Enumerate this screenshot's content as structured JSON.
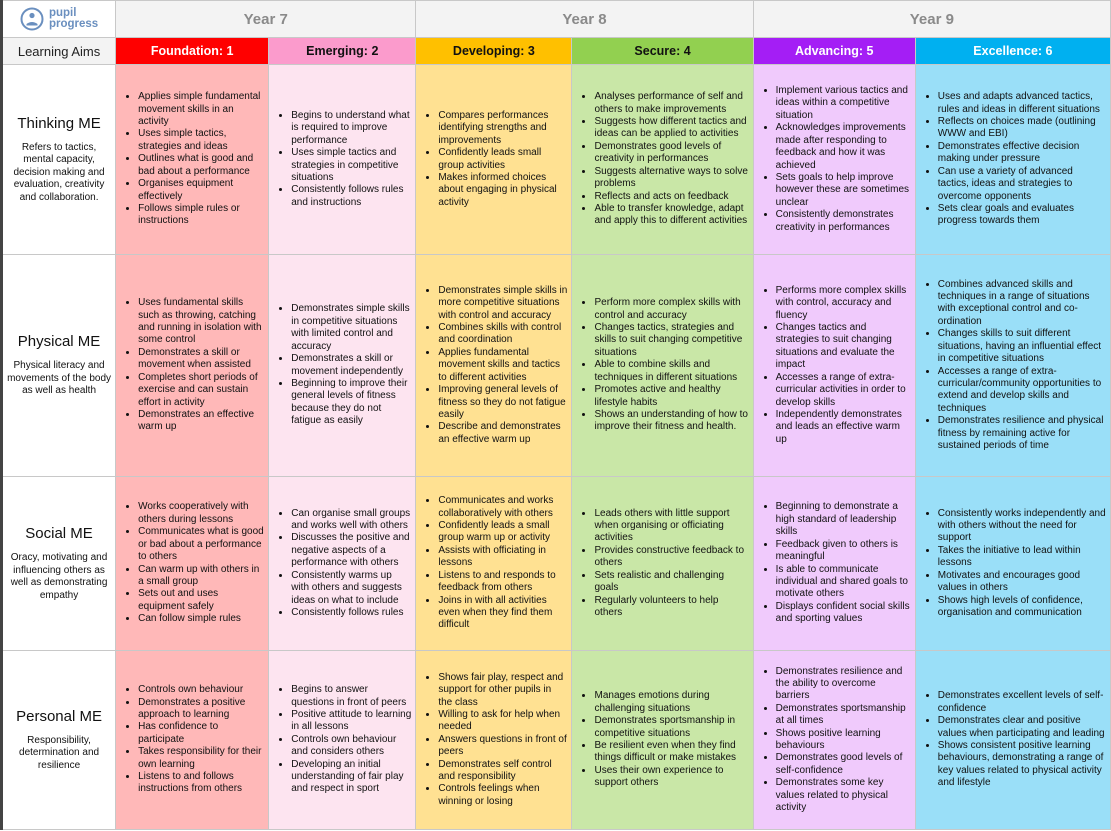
{
  "logo": {
    "line1": "pupil",
    "line2": "progress",
    "color": "#6a8fbf"
  },
  "years": [
    "Year 7",
    "Year 8",
    "Year 9"
  ],
  "learning_aims_label": "Learning Aims",
  "levels": [
    {
      "label": "Foundation: 1",
      "header_color": "#ff0000",
      "text_color": "#ffffff",
      "body_color": "#ffb8b8"
    },
    {
      "label": "Emerging: 2",
      "header_color": "#fb9bcc",
      "text_color": "#111111",
      "body_color": "#fde4f0"
    },
    {
      "label": "Developing: 3",
      "header_color": "#ffc000",
      "text_color": "#111111",
      "body_color": "#ffe192"
    },
    {
      "label": "Secure: 4",
      "header_color": "#92d050",
      "text_color": "#111111",
      "body_color": "#c9e7a7"
    },
    {
      "label": "Advancing: 5",
      "header_color": "#a41ef5",
      "text_color": "#ffffff",
      "body_color": "#f0cafc"
    },
    {
      "label": "Excellence: 6",
      "header_color": "#00b0f0",
      "text_color": "#ffffff",
      "body_color": "#9adff8"
    }
  ],
  "rows": [
    {
      "title": "Thinking ME",
      "description": "Refers to tactics, mental capacity, decision making and evaluation, creativity and collaboration.",
      "cells": [
        [
          "Applies simple fundamental movement skills in an activity",
          "Uses simple tactics, strategies and ideas",
          "Outlines what is good and bad about a performance",
          "Organises equipment effectively",
          "Follows simple rules or instructions"
        ],
        [
          "Begins to understand what is required to improve performance",
          "Uses simple tactics and strategies in competitive situations",
          "Consistently follows rules and instructions"
        ],
        [
          "Compares performances identifying strengths and improvements",
          "Confidently leads small group activities",
          "Makes informed choices about engaging in physical activity"
        ],
        [
          "Analyses performance of self and others to make improvements",
          "Suggests how different tactics and ideas can be applied to activities",
          "Demonstrates good levels of creativity in performances",
          "Suggests alternative ways to solve problems",
          "Reflects and acts on feedback",
          "Able to transfer knowledge, adapt and apply this to different activities"
        ],
        [
          "Implement various tactics and ideas within a competitive situation",
          "Acknowledges improvements made after responding to feedback and how it was achieved",
          "Sets goals to help improve however these are sometimes unclear",
          "Consistently demonstrates creativity in performances"
        ],
        [
          "Uses and adapts advanced tactics, rules and ideas in different situations",
          "Reflects on choices made (outlining WWW and EBI)",
          "Demonstrates effective decision making under pressure",
          "Can use a variety of advanced tactics, ideas and strategies to overcome opponents",
          "Sets clear goals and evaluates progress towards them"
        ]
      ]
    },
    {
      "title": "Physical ME",
      "description": "Physical literacy and movements of the body as well as health",
      "cells": [
        [
          "Uses fundamental skills such as throwing, catching and running in isolation with some control",
          "Demonstrates a skill or movement when assisted",
          "Completes short periods of exercise and can sustain effort in activity",
          "Demonstrates an effective warm up"
        ],
        [
          "Demonstrates simple skills in competitive situations with limited control and accuracy",
          "Demonstrates a skill or movement independently",
          "Beginning to improve their general levels of fitness because they do not fatigue as easily"
        ],
        [
          "Demonstrates simple skills in more competitive situations with control and accuracy",
          "Combines skills with control and coordination",
          "Applies fundamental movement skills and tactics to different activities",
          "Improving general levels of fitness so they do not fatigue easily",
          "Describe and demonstrates an effective warm up"
        ],
        [
          "Perform more complex skills with control and accuracy",
          "Changes tactics, strategies and skills to suit changing competitive situations",
          "Able to combine skills and techniques in different situations",
          "Promotes active and healthy lifestyle habits",
          "Shows an understanding of how to improve their fitness and health."
        ],
        [
          "Performs more complex skills with control, accuracy and fluency",
          "Changes tactics and strategies to suit changing situations and evaluate the impact",
          "Accesses a range of extra-curricular activities in order to develop skills",
          "Independently demonstrates and leads an effective warm up"
        ],
        [
          "Combines advanced skills and techniques in a range of situations with exceptional control and co-ordination",
          "Changes skills to suit different situations, having an influential effect in competitive situations",
          "Accesses a range of extra-curricular/community opportunities to extend and develop skills and techniques",
          "Demonstrates resilience and physical fitness by remaining active for sustained periods of time"
        ]
      ]
    },
    {
      "title": "Social ME",
      "description": "Oracy, motivating and influencing others as well as demonstrating empathy",
      "cells": [
        [
          "Works cooperatively with others during lessons",
          "Communicates what is good or bad about a performance to others",
          "Can warm up with others in a small group",
          "Sets out and uses equipment safely",
          "Can follow simple rules"
        ],
        [
          "Can organise small groups and works well with others",
          "Discusses the positive and negative aspects of a performance with others",
          "Consistently warms up with others and suggests ideas on what to include",
          "Consistently follows rules"
        ],
        [
          "Communicates and works collaboratively with others",
          "Confidently leads a small group warm up or activity",
          "Assists with officiating in lessons",
          "Listens to and responds to feedback from others",
          "Joins in with all activities even when they find them difficult"
        ],
        [
          "Leads others with little support when organising or officiating activities",
          "Provides constructive feedback to others",
          "Sets realistic and challenging goals",
          "Regularly volunteers to help others"
        ],
        [
          "Beginning to demonstrate a high standard of leadership skills",
          "Feedback given to others is meaningful",
          "Is able to communicate individual and shared goals to motivate others",
          "Displays confident social skills and sporting values"
        ],
        [
          "Consistently works independently and with others without the need for support",
          "Takes the initiative to lead within lessons",
          "Motivates and encourages good values in others",
          "Shows high levels of confidence, organisation and communication"
        ]
      ]
    },
    {
      "title": "Personal ME",
      "description": "Responsibility, determination and resilience",
      "cells": [
        [
          "Controls own behaviour",
          "Demonstrates a positive approach to learning",
          "Has confidence to participate",
          "Takes responsibility for their own learning",
          "Listens to and follows instructions from others"
        ],
        [
          "Begins to answer questions in front of peers",
          "Positive attitude to learning in all lessons",
          "Controls own behaviour and considers others",
          "Developing an initial understanding of fair play and respect in sport"
        ],
        [
          "Shows fair play, respect and support for other pupils in the class",
          "Willing to ask for help when needed",
          "Answers questions in front of peers",
          "Demonstrates self control and responsibility",
          "Controls feelings when winning or losing"
        ],
        [
          "Manages emotions during challenging situations",
          "Demonstrates sportsmanship in competitive situations",
          "Be resilient even when they find things difficult or make mistakes",
          "Uses their own experience to support others"
        ],
        [
          "Demonstrates resilience and the ability to overcome barriers",
          "Demonstrates sportsmanship at all times",
          "Shows positive learning behaviours",
          "Demonstrates good levels of self-confidence",
          "Demonstrates some key values related to physical activity"
        ],
        [
          "Demonstrates excellent levels of self-confidence",
          "Demonstrates clear and positive values when participating and leading",
          "Shows consistent positive learning behaviours, demonstrating a range of key values related to physical activity and lifestyle"
        ]
      ]
    }
  ]
}
